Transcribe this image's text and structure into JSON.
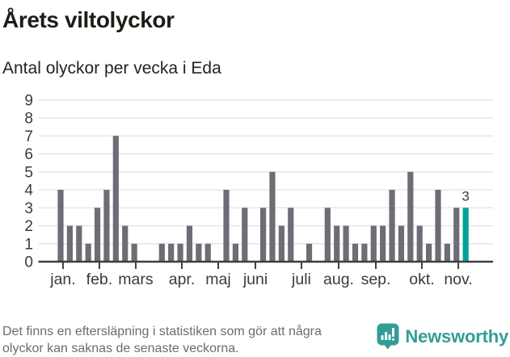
{
  "header": {
    "title": "Årets viltolyckor",
    "subtitle": "Antal olyckor per vecka i Eda"
  },
  "chart_data": {
    "type": "bar",
    "title": "Årets viltolyckor",
    "subtitle": "Antal olyckor per vecka i Eda",
    "x_unit": "vecka",
    "values": [
      4,
      2,
      2,
      1,
      3,
      4,
      7,
      2,
      1,
      0,
      0,
      1,
      1,
      1,
      2,
      1,
      1,
      0,
      4,
      1,
      3,
      0,
      3,
      5,
      2,
      3,
      0,
      1,
      0,
      3,
      2,
      2,
      1,
      1,
      2,
      2,
      4,
      2,
      5,
      2,
      1,
      4,
      1,
      3,
      3
    ],
    "highlight_last": true,
    "last_value_label": "3",
    "ylim": [
      0,
      9
    ],
    "y_ticks": [
      0,
      1,
      2,
      3,
      4,
      5,
      6,
      7,
      8,
      9
    ],
    "grid": true,
    "month_ticks": [
      {
        "label": "jan.",
        "week": 0.26
      },
      {
        "label": "feb.",
        "week": 4.21
      },
      {
        "label": "mars",
        "week": 8.16
      },
      {
        "label": "apr.",
        "week": 13.17
      },
      {
        "label": "maj",
        "week": 17.12
      },
      {
        "label": "juni",
        "week": 21.16
      },
      {
        "label": "juli",
        "week": 26.16
      },
      {
        "label": "aug.",
        "week": 30.2
      },
      {
        "label": "sep.",
        "week": 34.24
      },
      {
        "label": "okt.",
        "week": 39.24
      },
      {
        "label": "nov.",
        "week": 43.2
      }
    ]
  },
  "colors": {
    "bar": "#6d6d75",
    "highlight": "#00a29a",
    "grid": "#e2e2e2",
    "axis": "#3f3f3f",
    "tick_label": "#3b3b3b",
    "annotation": "#3b3b3b",
    "brand_teal": "#319e96",
    "title_text": "#1d1d18",
    "footer_text": "#6b6b72"
  },
  "footer": {
    "note_lines": [
      "Det finns en eftersläpning i statistiken som gör att några",
      "olyckor kan saknas de senaste veckorna."
    ],
    "brand": "Newsworthy"
  }
}
